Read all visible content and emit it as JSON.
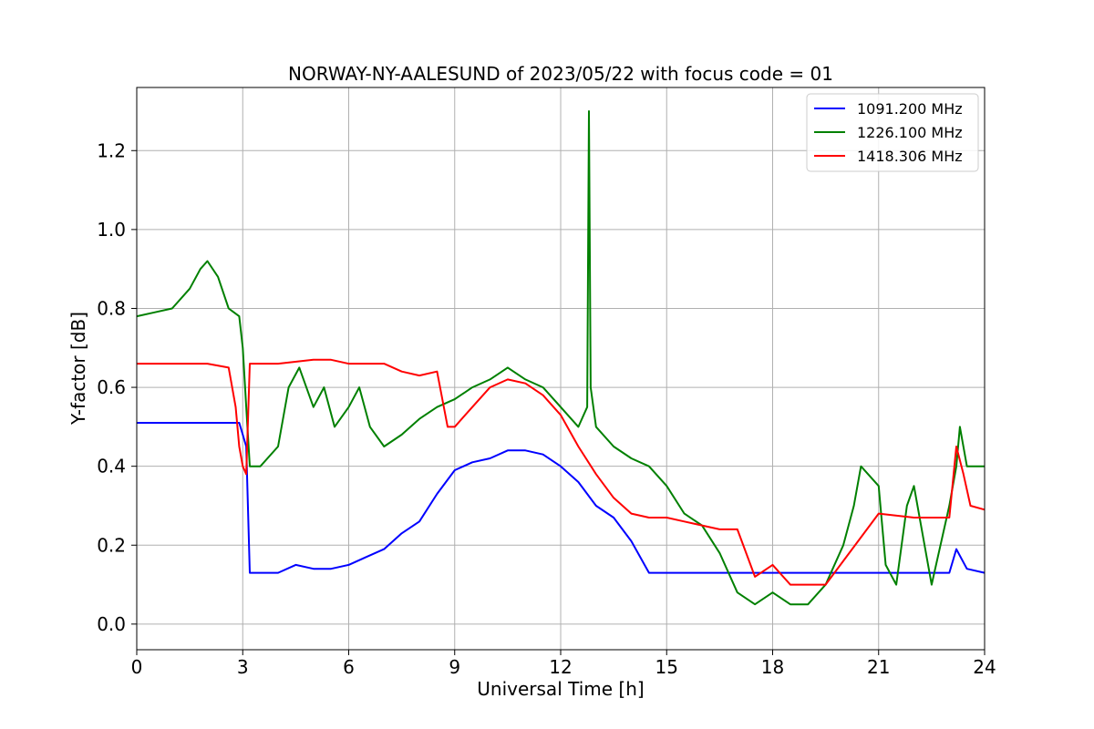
{
  "chart_data": {
    "type": "line",
    "title": "NORWAY-NY-AALESUND of 2023/05/22 with focus code = 01",
    "xlabel": "Universal Time [h]",
    "ylabel": "Y-factor [dB]",
    "xlim": [
      0,
      24
    ],
    "ylim": [
      -0.065,
      1.36
    ],
    "xticks": [
      0,
      3,
      6,
      9,
      12,
      15,
      18,
      21,
      24
    ],
    "xtick_labels": [
      "0",
      "3",
      "6",
      "9",
      "12",
      "15",
      "18",
      "21",
      "24"
    ],
    "yticks": [
      0.0,
      0.2,
      0.4,
      0.6,
      0.8,
      1.0,
      1.2
    ],
    "ytick_labels": [
      "0.0",
      "0.2",
      "0.4",
      "0.6",
      "0.8",
      "1.0",
      "1.2"
    ],
    "grid": true,
    "legend_position": "top-right",
    "series": [
      {
        "name": "1091.200 MHz",
        "color": "#0000ff",
        "x": [
          0.0,
          1.0,
          2.0,
          2.9,
          3.0,
          3.1,
          3.2,
          3.3,
          4.0,
          4.5,
          5.0,
          5.5,
          6.0,
          6.5,
          7.0,
          7.5,
          8.0,
          8.5,
          9.0,
          9.5,
          10.0,
          10.5,
          11.0,
          11.5,
          12.0,
          12.5,
          13.0,
          13.5,
          14.0,
          14.5,
          15.0,
          15.5,
          16.0,
          17.0,
          18.0,
          19.0,
          20.0,
          21.0,
          22.0,
          23.0,
          23.2,
          23.5,
          24.0
        ],
        "y": [
          0.51,
          0.51,
          0.51,
          0.51,
          0.48,
          0.45,
          0.13,
          0.13,
          0.13,
          0.15,
          0.14,
          0.14,
          0.15,
          0.17,
          0.19,
          0.23,
          0.26,
          0.33,
          0.39,
          0.41,
          0.42,
          0.44,
          0.44,
          0.43,
          0.4,
          0.36,
          0.3,
          0.27,
          0.21,
          0.13,
          0.13,
          0.13,
          0.13,
          0.13,
          0.13,
          0.13,
          0.13,
          0.13,
          0.13,
          0.13,
          0.19,
          0.14,
          0.13
        ]
      },
      {
        "name": "1226.100 MHz",
        "color": "#008000",
        "x": [
          0.0,
          0.5,
          1.0,
          1.5,
          1.8,
          2.0,
          2.3,
          2.6,
          2.9,
          3.0,
          3.1,
          3.2,
          3.5,
          4.0,
          4.3,
          4.6,
          5.0,
          5.3,
          5.6,
          6.0,
          6.3,
          6.6,
          7.0,
          7.5,
          8.0,
          8.5,
          9.0,
          9.5,
          10.0,
          10.5,
          11.0,
          11.5,
          12.0,
          12.5,
          12.75,
          12.8,
          12.85,
          13.0,
          13.5,
          14.0,
          14.5,
          15.0,
          15.5,
          16.0,
          16.5,
          17.0,
          17.5,
          18.0,
          18.5,
          19.0,
          19.5,
          20.0,
          20.3,
          20.5,
          21.0,
          21.2,
          21.5,
          21.8,
          22.0,
          22.5,
          23.0,
          23.2,
          23.3,
          23.5,
          24.0
        ],
        "y": [
          0.78,
          0.79,
          0.8,
          0.85,
          0.9,
          0.92,
          0.88,
          0.8,
          0.78,
          0.7,
          0.55,
          0.4,
          0.4,
          0.45,
          0.6,
          0.65,
          0.55,
          0.6,
          0.5,
          0.55,
          0.6,
          0.5,
          0.45,
          0.48,
          0.52,
          0.55,
          0.57,
          0.6,
          0.62,
          0.65,
          0.62,
          0.6,
          0.55,
          0.5,
          0.55,
          1.3,
          0.6,
          0.5,
          0.45,
          0.42,
          0.4,
          0.35,
          0.28,
          0.25,
          0.18,
          0.08,
          0.05,
          0.08,
          0.05,
          0.05,
          0.1,
          0.2,
          0.3,
          0.4,
          0.35,
          0.15,
          0.1,
          0.3,
          0.35,
          0.1,
          0.3,
          0.4,
          0.5,
          0.4,
          0.4
        ]
      },
      {
        "name": "1418.306 MHz",
        "color": "#ff0000",
        "x": [
          0.0,
          1.0,
          2.0,
          2.6,
          2.8,
          2.9,
          3.0,
          3.1,
          3.2,
          3.3,
          4.0,
          5.0,
          5.5,
          6.0,
          6.5,
          7.0,
          7.5,
          8.0,
          8.5,
          8.8,
          9.0,
          9.5,
          10.0,
          10.5,
          11.0,
          11.5,
          12.0,
          12.5,
          13.0,
          13.5,
          14.0,
          14.5,
          15.0,
          15.5,
          16.0,
          16.5,
          17.0,
          17.5,
          18.0,
          18.5,
          19.0,
          19.5,
          20.0,
          20.5,
          21.0,
          22.0,
          23.0,
          23.2,
          23.4,
          23.6,
          24.0
        ],
        "y": [
          0.66,
          0.66,
          0.66,
          0.65,
          0.55,
          0.45,
          0.4,
          0.38,
          0.66,
          0.66,
          0.66,
          0.67,
          0.67,
          0.66,
          0.66,
          0.66,
          0.64,
          0.63,
          0.64,
          0.5,
          0.5,
          0.55,
          0.6,
          0.62,
          0.61,
          0.58,
          0.53,
          0.45,
          0.38,
          0.32,
          0.28,
          0.27,
          0.27,
          0.26,
          0.25,
          0.24,
          0.24,
          0.12,
          0.15,
          0.1,
          0.1,
          0.1,
          0.16,
          0.22,
          0.28,
          0.27,
          0.27,
          0.45,
          0.38,
          0.3,
          0.29
        ]
      }
    ]
  }
}
